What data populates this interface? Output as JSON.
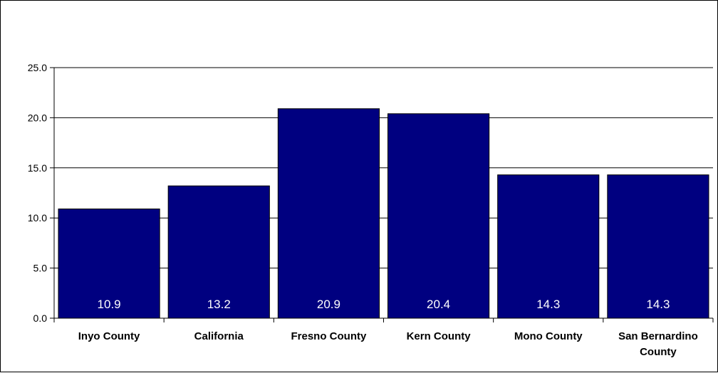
{
  "chart_data": {
    "type": "bar",
    "title": "",
    "xlabel": "",
    "ylabel": "",
    "categories": [
      [
        "Inyo County"
      ],
      [
        "California"
      ],
      [
        "Fresno County"
      ],
      [
        "Kern County"
      ],
      [
        "Mono County"
      ],
      [
        "San Bernardino",
        "County"
      ]
    ],
    "values": [
      10.9,
      13.2,
      20.9,
      20.4,
      14.3,
      14.3
    ],
    "data_labels": [
      "10.9",
      "13.2",
      "20.9",
      "20.4",
      "14.3",
      "14.3"
    ],
    "ylim": [
      0,
      25
    ],
    "yticks": [
      0,
      5,
      10,
      15,
      20,
      25
    ],
    "ytick_labels": [
      "0.0",
      "5.0",
      "10.0",
      "15.0",
      "20.0",
      "25.0"
    ],
    "grid": true,
    "legend": "none",
    "colors": {
      "bar": "#000080",
      "gridline": "#000000",
      "data_label": "#ffffff"
    }
  }
}
